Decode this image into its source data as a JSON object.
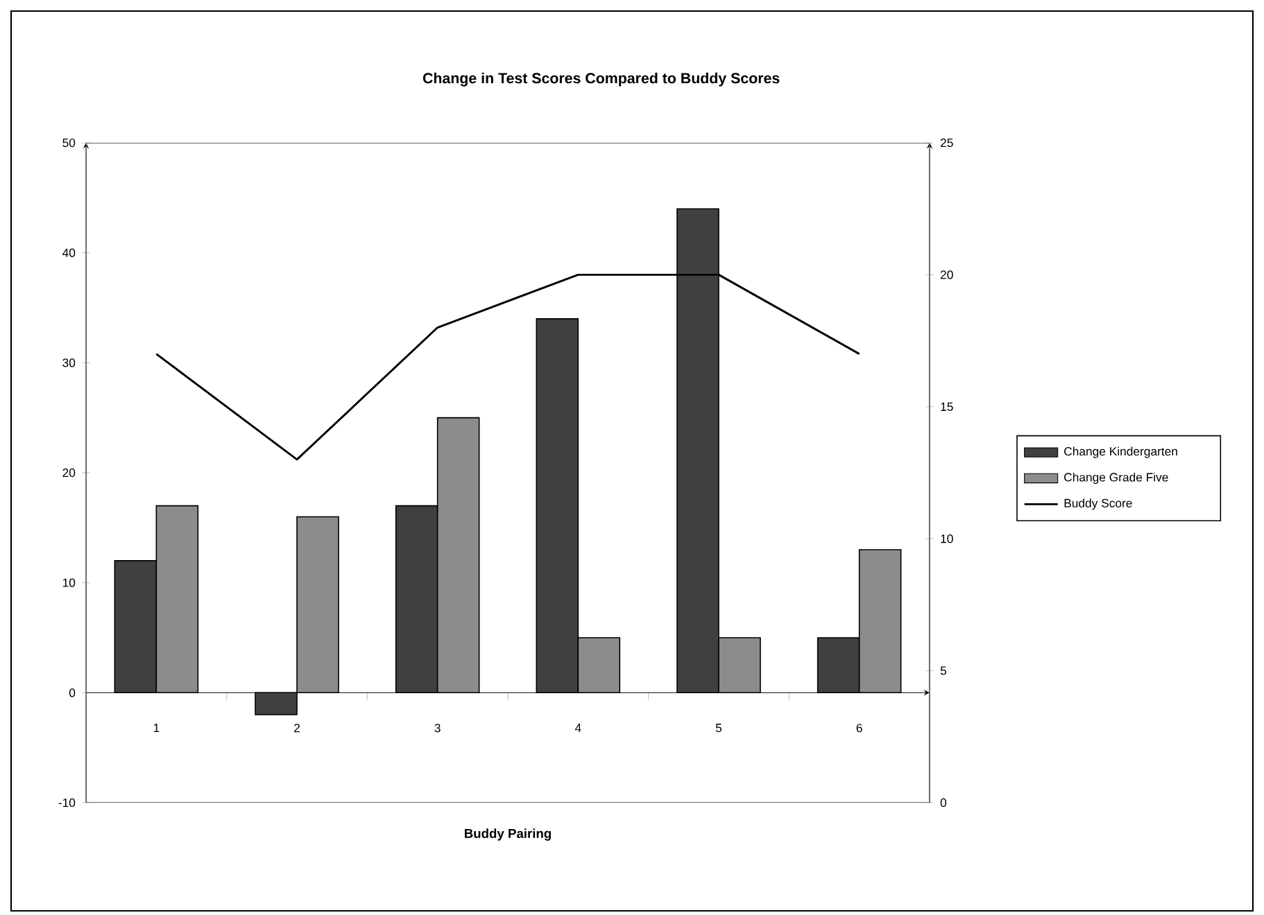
{
  "chart_data": {
    "type": "bar",
    "title": "Change in Test Scores Compared to Buddy Scores",
    "xlabel": "Buddy Pairing",
    "categories": [
      "1",
      "2",
      "3",
      "4",
      "5",
      "6"
    ],
    "series": [
      {
        "name": "Change Kindergarten",
        "color": "#404040",
        "values": [
          12,
          -2,
          17,
          34,
          44,
          5
        ]
      },
      {
        "name": "Change Grade Five",
        "color": "#8c8c8c",
        "values": [
          17,
          16,
          25,
          5,
          5,
          13
        ]
      },
      {
        "name": "Buddy Score",
        "type": "line",
        "axis": "y2",
        "color": "#000000",
        "values": [
          17,
          13,
          18,
          20,
          20,
          17
        ]
      }
    ],
    "ylim": [
      -10,
      50
    ],
    "yticks": [
      -10,
      0,
      10,
      20,
      30,
      40,
      50
    ],
    "y2lim": [
      0,
      25
    ],
    "y2ticks": [
      0,
      5,
      10,
      15,
      20,
      25
    ],
    "legend": "right",
    "grid": false
  }
}
